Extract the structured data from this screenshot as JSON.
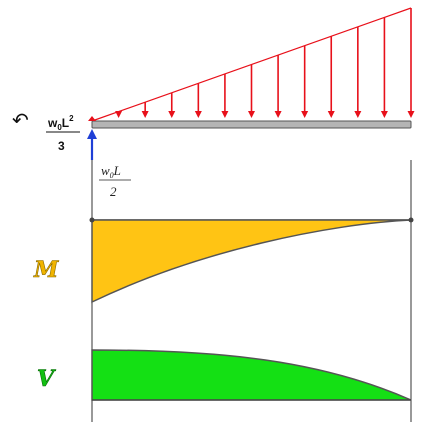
{
  "moment_reaction": {
    "numerator": "w",
    "numerator_sub": "0",
    "numerator_var": "L",
    "numerator_sup": "2",
    "denominator": "3",
    "arrow_glyph": "↶",
    "arrow_color": "#111111"
  },
  "shear_reaction": {
    "numerator": "w",
    "numerator_sub": "0",
    "numerator_var": "L",
    "denominator": "2",
    "arrow_color": "#1f3fd6"
  },
  "load": {
    "type": "linearly-increasing distributed load",
    "arrow_count": 13,
    "color": "#e8101a"
  },
  "beam": {
    "fill": "#b4b4b4",
    "stroke": "#555555"
  },
  "moment_diagram": {
    "label": "M",
    "fill": "#ffc414",
    "label_color": "#f0b400"
  },
  "shear_diagram": {
    "label": "V",
    "fill": "#14e014",
    "label_color": "#12c012"
  }
}
